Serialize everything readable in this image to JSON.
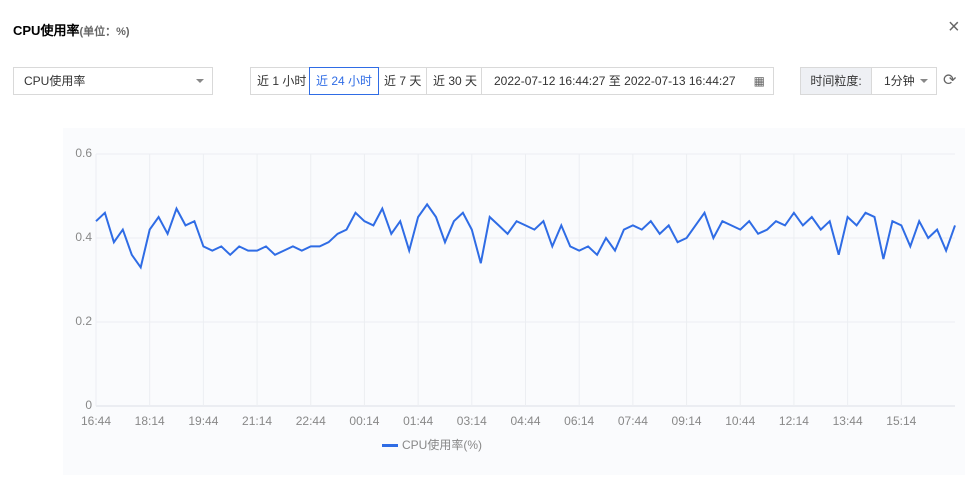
{
  "header": {
    "title": "CPU使用率",
    "unit": "(单位：%)"
  },
  "controls": {
    "metric": "CPU使用率",
    "ranges": [
      "近 1 小时",
      "近 24 小时",
      "近 7 天",
      "近 30 天"
    ],
    "active_range": 1,
    "date_start": "2022-07-12 16:44:27",
    "date_sep": "至",
    "date_end": "2022-07-13 16:44:27",
    "granularity_label": "时间粒度:",
    "granularity": "1分钟"
  },
  "chart_data": {
    "type": "line",
    "categories": [
      "16:44",
      null,
      null,
      null,
      null,
      null,
      "18:14",
      null,
      null,
      null,
      null,
      null,
      "19:44",
      null,
      null,
      null,
      null,
      null,
      "21:14",
      null,
      null,
      null,
      null,
      null,
      "22:44",
      null,
      null,
      null,
      null,
      null,
      "00:14",
      null,
      null,
      null,
      null,
      null,
      "01:44",
      null,
      null,
      null,
      null,
      null,
      "03:14",
      null,
      null,
      null,
      null,
      null,
      "04:44",
      null,
      null,
      null,
      null,
      null,
      "06:14",
      null,
      null,
      null,
      null,
      null,
      "07:44",
      null,
      null,
      null,
      null,
      null,
      "09:14",
      null,
      null,
      null,
      null,
      null,
      "10:44",
      null,
      null,
      null,
      null,
      null,
      "12:14",
      null,
      null,
      null,
      null,
      null,
      "13:44",
      null,
      null,
      null,
      null,
      null,
      "15:14",
      null,
      null,
      null,
      null,
      null,
      null
    ],
    "series": [
      {
        "name": "CPU使用率(%)",
        "color": "#2f6ce5",
        "values": [
          0.44,
          0.46,
          0.39,
          0.42,
          0.36,
          0.33,
          0.42,
          0.45,
          0.41,
          0.47,
          0.43,
          0.44,
          0.38,
          0.37,
          0.38,
          0.36,
          0.38,
          0.37,
          0.37,
          0.38,
          0.36,
          0.37,
          0.38,
          0.37,
          0.38,
          0.38,
          0.39,
          0.41,
          0.42,
          0.46,
          0.44,
          0.43,
          0.47,
          0.41,
          0.44,
          0.37,
          0.45,
          0.48,
          0.45,
          0.39,
          0.44,
          0.46,
          0.42,
          0.34,
          0.45,
          0.43,
          0.41,
          0.44,
          0.43,
          0.42,
          0.44,
          0.38,
          0.43,
          0.38,
          0.37,
          0.38,
          0.36,
          0.4,
          0.37,
          0.42,
          0.43,
          0.42,
          0.44,
          0.41,
          0.43,
          0.39,
          0.4,
          0.43,
          0.46,
          0.4,
          0.44,
          0.43,
          0.42,
          0.44,
          0.41,
          0.42,
          0.44,
          0.43,
          0.46,
          0.43,
          0.45,
          0.42,
          0.44,
          0.36,
          0.45,
          0.43,
          0.46,
          0.45,
          0.35,
          0.44,
          0.43,
          0.38,
          0.44,
          0.4,
          0.42,
          0.37,
          0.43
        ]
      }
    ],
    "ylim": [
      0,
      0.6
    ],
    "yticks": [
      0,
      0.2,
      0.4,
      0.6
    ],
    "grid": true
  }
}
